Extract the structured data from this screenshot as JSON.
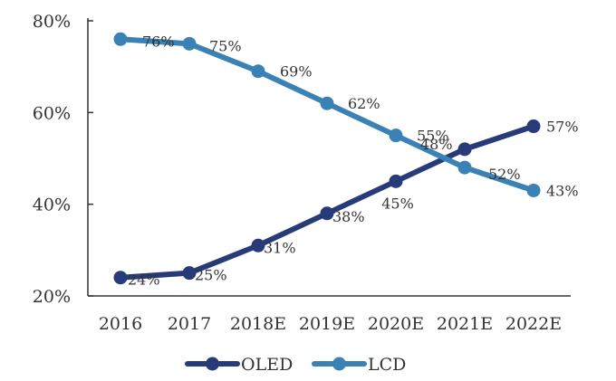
{
  "chart_data": {
    "type": "line",
    "categories": [
      "2016",
      "2017",
      "2018E",
      "2019E",
      "2020E",
      "2021E",
      "2022E"
    ],
    "series": [
      {
        "name": "OLED",
        "values": [
          24,
          25,
          31,
          38,
          45,
          52,
          57
        ],
        "labels": [
          "24%",
          "25%",
          "31%",
          "38%",
          "45%",
          "52%",
          "57%"
        ],
        "color": "#263b78"
      },
      {
        "name": "LCD",
        "values": [
          76,
          75,
          69,
          62,
          55,
          48,
          43
        ],
        "labels": [
          "76%",
          "75%",
          "69%",
          "62%",
          "55%",
          "48%",
          "43%"
        ],
        "color": "#3a82b5"
      }
    ],
    "y_ticks": [
      20,
      40,
      60,
      80
    ],
    "y_tick_labels": [
      "20%",
      "40%",
      "60%",
      "80%"
    ],
    "ylim": [
      20,
      80
    ],
    "grid": false,
    "legend": "bottom-center"
  }
}
